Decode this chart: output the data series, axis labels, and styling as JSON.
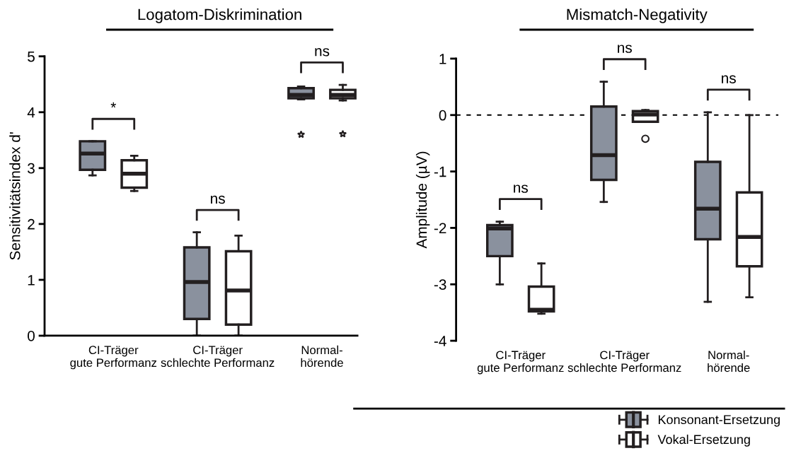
{
  "chart_data": [
    {
      "type": "box",
      "title": "Logatom-Diskrimination",
      "ylabel": "Sensitivitätsindex d'",
      "categories": [
        "CI-Träger\ngute Performanz",
        "CI-Träger\nschlechte Performanz",
        "Normal-\nhörende"
      ],
      "ylim": [
        0,
        5
      ],
      "yticks": [
        0,
        1,
        2,
        3,
        4,
        5
      ],
      "marker": "star",
      "series": [
        {
          "color": "#8a919e",
          "boxes": [
            {
              "low": 2.87,
              "q1": 2.97,
              "median": 3.26,
              "q3": 3.48,
              "high": 3.48
            },
            {
              "low": 0,
              "q1": 0.3,
              "median": 0.96,
              "q3": 1.58,
              "high": 1.85
            },
            {
              "low": 4.23,
              "q1": 4.25,
              "median": 4.31,
              "q3": 4.43,
              "high": 4.46,
              "outliers": [
                3.6
              ]
            }
          ]
        },
        {
          "color": "#ffffff",
          "boxes": [
            {
              "low": 2.59,
              "q1": 2.65,
              "median": 2.9,
              "q3": 3.14,
              "high": 3.22
            },
            {
              "low": 0,
              "q1": 0.2,
              "median": 0.81,
              "q3": 1.51,
              "high": 1.79
            },
            {
              "low": 4.21,
              "q1": 4.25,
              "median": 4.31,
              "q3": 4.4,
              "high": 4.49,
              "outliers": [
                3.61
              ]
            }
          ]
        }
      ],
      "annotations": [
        "*",
        "ns",
        "ns"
      ]
    },
    {
      "type": "box",
      "title": "Mismatch-Negativity",
      "ylabel": "Amplitude (µV)",
      "categories": [
        "CI-Träger\ngute Performanz",
        "CI-Träger\nschlechte Performanz",
        "Normal-\nhörende"
      ],
      "ylim": [
        -4,
        1
      ],
      "yticks": [
        -4,
        -3,
        -2,
        -1,
        0,
        1
      ],
      "marker": "circle",
      "legend": "bottom right",
      "series": [
        {
          "name": "Konsonant-Ersetzung",
          "color": "#8a919e",
          "boxes": [
            {
              "low": -3.0,
              "q1": -2.5,
              "median": -2.01,
              "q3": -1.95,
              "high": -1.89
            },
            {
              "low": -1.54,
              "q1": -1.15,
              "median": -0.71,
              "q3": 0.15,
              "high": 0.59
            },
            {
              "low": -3.31,
              "q1": -2.2,
              "median": -1.66,
              "q3": -0.83,
              "high": 0.05
            }
          ]
        },
        {
          "name": "Vokal-Ersetzung",
          "color": "#ffffff",
          "boxes": [
            {
              "low": -3.52,
              "q1": -3.48,
              "median": -3.45,
              "q3": -3.04,
              "high": -2.63
            },
            {
              "low": -0.12,
              "q1": -0.12,
              "median": 0.01,
              "q3": 0.07,
              "high": 0.09,
              "outliers": [
                -0.42
              ]
            },
            {
              "low": -3.23,
              "q1": -2.68,
              "median": -2.16,
              "q3": -1.37,
              "high": 0
            }
          ]
        }
      ],
      "ref_lines": [
        {
          "axis": "y",
          "value": 0,
          "line_style": "dashed",
          "color": "#000000"
        }
      ],
      "annotations": [
        "ns",
        "ns",
        "ns"
      ]
    }
  ]
}
